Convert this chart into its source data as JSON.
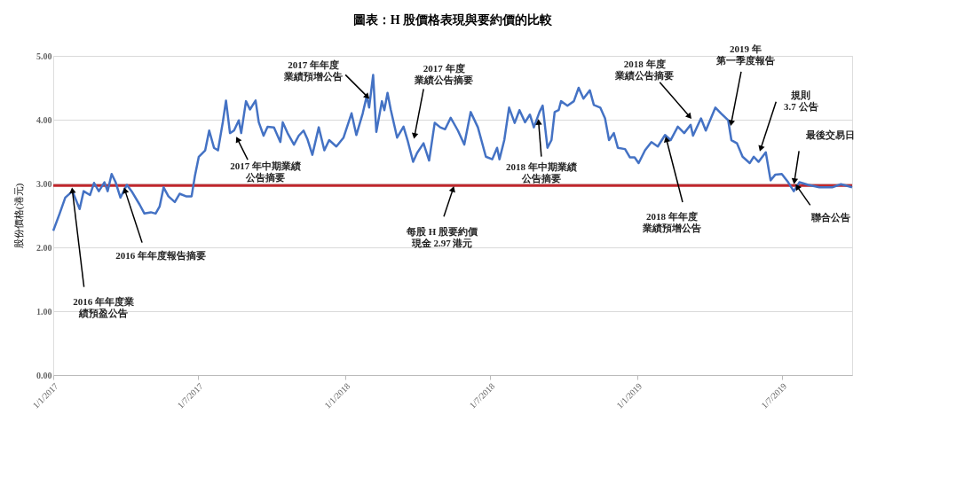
{
  "chart_data": {
    "type": "line",
    "title": "圖表：H 股價格表現與要約價的比較",
    "ylabel": "股份價格(港元)",
    "color": "#4472c4",
    "x": [
      "2017-01-01",
      "2017-01-09",
      "2017-01-16",
      "2017-01-25",
      "2017-02-03",
      "2017-02-08",
      "2017-02-16",
      "2017-02-21",
      "2017-02-27",
      "2017-03-06",
      "2017-03-10",
      "2017-03-15",
      "2017-03-20",
      "2017-03-26",
      "2017-04-03",
      "2017-04-09",
      "2017-04-19",
      "2017-04-25",
      "2017-05-03",
      "2017-05-09",
      "2017-05-14",
      "2017-05-19",
      "2017-05-25",
      "2017-06-02",
      "2017-06-08",
      "2017-06-16",
      "2017-06-23",
      "2017-06-27",
      "2017-07-02",
      "2017-07-10",
      "2017-07-15",
      "2017-07-21",
      "2017-07-26",
      "2017-08-01",
      "2017-08-05",
      "2017-08-10",
      "2017-08-15",
      "2017-08-21",
      "2017-08-24",
      "2017-08-30",
      "2017-09-04",
      "2017-09-11",
      "2017-09-15",
      "2017-09-21",
      "2017-09-26",
      "2017-10-04",
      "2017-10-12",
      "2017-10-15",
      "2017-10-21",
      "2017-10-29",
      "2017-11-04",
      "2017-11-10",
      "2017-11-15",
      "2017-11-21",
      "2017-11-29",
      "2017-12-06",
      "2017-12-12",
      "2017-12-21",
      "2017-12-30",
      "2018-01-09",
      "2018-01-15",
      "2018-01-23",
      "2018-01-28",
      "2018-01-31",
      "2018-02-05",
      "2018-02-09",
      "2018-02-16",
      "2018-02-19",
      "2018-02-23",
      "2018-02-27",
      "2018-03-07",
      "2018-03-15",
      "2018-03-20",
      "2018-03-27",
      "2018-04-01",
      "2018-04-09",
      "2018-04-16",
      "2018-04-23",
      "2018-04-30",
      "2018-05-06",
      "2018-05-13",
      "2018-05-22",
      "2018-05-30",
      "2018-06-07",
      "2018-06-16",
      "2018-06-26",
      "2018-07-04",
      "2018-07-10",
      "2018-07-13",
      "2018-07-19",
      "2018-07-25",
      "2018-08-01",
      "2018-08-07",
      "2018-08-14",
      "2018-08-20",
      "2018-08-25",
      "2018-09-01",
      "2018-09-05",
      "2018-09-11",
      "2018-09-16",
      "2018-09-20",
      "2018-09-25",
      "2018-09-28",
      "2018-10-06",
      "2018-10-14",
      "2018-10-20",
      "2018-10-26",
      "2018-11-03",
      "2018-11-08",
      "2018-11-16",
      "2018-11-22",
      "2018-11-27",
      "2018-12-03",
      "2018-12-08",
      "2018-12-17",
      "2018-12-23",
      "2018-12-29",
      "2019-01-03",
      "2019-01-11",
      "2019-01-19",
      "2019-01-27",
      "2019-02-05",
      "2019-02-12",
      "2019-02-21",
      "2019-03-01",
      "2019-03-09",
      "2019-03-12",
      "2019-03-22",
      "2019-03-28",
      "2019-04-09",
      "2019-04-16",
      "2019-04-25",
      "2019-04-29",
      "2019-05-06",
      "2019-05-13",
      "2019-05-22",
      "2019-05-27",
      "2019-06-02",
      "2019-06-11",
      "2019-06-17",
      "2019-06-23",
      "2019-07-01",
      "2019-07-09",
      "2019-07-16",
      "2019-07-23",
      "2019-08-03",
      "2019-08-17",
      "2019-09-02",
      "2019-09-13",
      "2019-09-27"
    ],
    "values": [
      2.26,
      2.53,
      2.78,
      2.88,
      2.6,
      2.88,
      2.82,
      3.01,
      2.88,
      3.02,
      2.88,
      3.15,
      3.02,
      2.78,
      2.98,
      2.88,
      2.67,
      2.53,
      2.55,
      2.53,
      2.64,
      2.94,
      2.8,
      2.71,
      2.84,
      2.8,
      2.8,
      3.11,
      3.42,
      3.52,
      3.83,
      3.56,
      3.52,
      3.96,
      4.3,
      3.79,
      3.83,
      3.99,
      3.79,
      4.29,
      4.16,
      4.3,
      3.96,
      3.75,
      3.89,
      3.88,
      3.65,
      3.96,
      3.79,
      3.61,
      3.75,
      3.83,
      3.69,
      3.45,
      3.88,
      3.52,
      3.68,
      3.58,
      3.72,
      4.1,
      3.76,
      4.1,
      4.37,
      4.19,
      4.7,
      3.81,
      4.29,
      4.15,
      4.42,
      4.16,
      3.72,
      3.89,
      3.68,
      3.34,
      3.48,
      3.63,
      3.36,
      3.95,
      3.88,
      3.85,
      4.03,
      3.83,
      3.61,
      4.12,
      3.88,
      3.42,
      3.38,
      3.56,
      3.38,
      3.68,
      4.19,
      3.95,
      4.15,
      3.96,
      4.08,
      3.88,
      4.12,
      4.22,
      3.56,
      3.68,
      4.12,
      4.15,
      4.29,
      4.22,
      4.29,
      4.5,
      4.33,
      4.46,
      4.23,
      4.19,
      4.02,
      3.68,
      3.79,
      3.56,
      3.54,
      3.41,
      3.41,
      3.32,
      3.52,
      3.65,
      3.58,
      3.76,
      3.68,
      3.89,
      3.79,
      3.92,
      3.75,
      4.02,
      3.83,
      4.19,
      4.1,
      3.99,
      3.68,
      3.63,
      3.42,
      3.32,
      3.42,
      3.34,
      3.49,
      3.05,
      3.14,
      3.15,
      3.02,
      2.88,
      3.02,
      2.98,
      2.94,
      2.94,
      2.99,
      2.94
    ],
    "xlim": [
      "2017-01-01",
      "2019-09-27"
    ],
    "xticks": [
      {
        "value": "2017-01-01",
        "label": "1/1/2017"
      },
      {
        "value": "2017-07-01",
        "label": "1/7/2017"
      },
      {
        "value": "2018-01-01",
        "label": "1/1/2018"
      },
      {
        "value": "2018-07-01",
        "label": "1/7/2018"
      },
      {
        "value": "2019-01-01",
        "label": "1/1/2019"
      },
      {
        "value": "2019-07-01",
        "label": "1/7/2019"
      }
    ],
    "ylim": [
      0,
      5
    ],
    "yticks": [
      {
        "value": 0,
        "label": "0.00"
      },
      {
        "value": 1,
        "label": "1.00"
      },
      {
        "value": 2,
        "label": "2.00"
      },
      {
        "value": 3,
        "label": "3.00"
      },
      {
        "value": 4,
        "label": "4.00"
      },
      {
        "value": 5,
        "label": "5.00"
      }
    ],
    "grid": "y",
    "ref_lines": [
      {
        "axis": "y",
        "value": 2.97,
        "label": "每股 H 股要約價現金 2.97 港元",
        "color": "#c0272d"
      }
    ],
    "annotations": [
      {
        "text": "2016 年年度業績預盈公告",
        "x": "2017-01-25",
        "y": 2.88
      },
      {
        "text": "2016 年年度報告摘要",
        "x": "2017-04-01",
        "y": 2.88
      },
      {
        "text": "2017 年中期業績公告摘要",
        "x": "2017-08-20",
        "y": 3.68
      },
      {
        "text": "2017 年年度業績預增公告",
        "x": "2018-01-28",
        "y": 4.37
      },
      {
        "text": "2017 年度業績公告摘要",
        "x": "2018-03-29",
        "y": 3.76
      },
      {
        "text": "2018 年中期業績公告摘要",
        "x": "2018-08-31",
        "y": 3.95
      },
      {
        "text": "2018 年度業績公告摘要",
        "x": "2019-03-07",
        "y": 4.06
      },
      {
        "text": "2019 年第一季度報告",
        "x": "2019-04-29",
        "y": 3.96
      },
      {
        "text": "規則\n3.7 公告",
        "x": "2019-06-05",
        "y": 3.56
      },
      {
        "text": "最後交易日",
        "x": "2019-07-17",
        "y": 3.05
      },
      {
        "text": "聯合公告",
        "x": "2019-07-21",
        "y": 2.94
      },
      {
        "text": "2018 年年度業績預增公告",
        "x": "2019-02-07",
        "y": 3.68
      }
    ]
  }
}
